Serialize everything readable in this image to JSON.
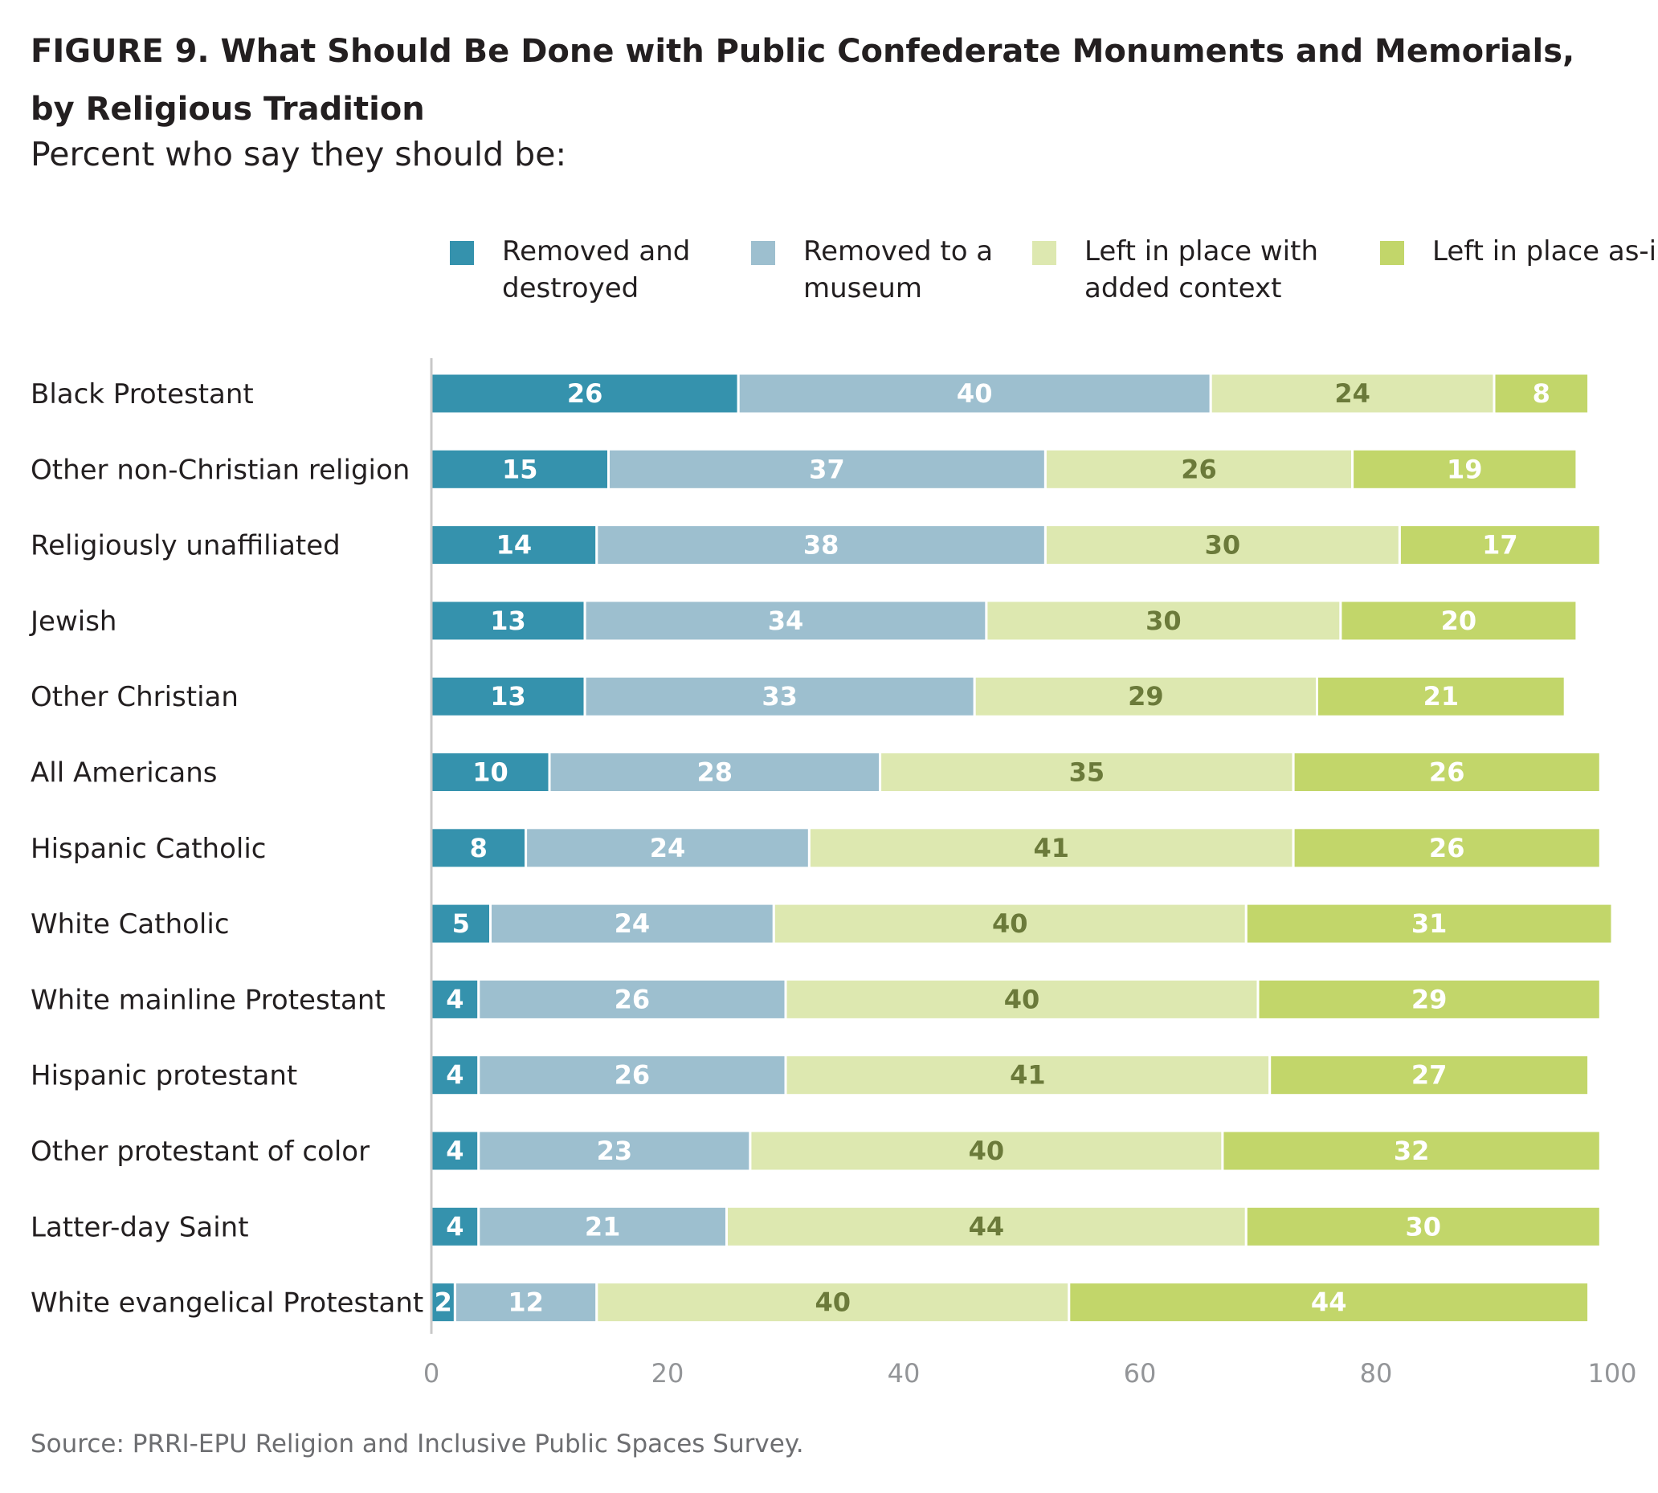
{
  "title": "FIGURE 9.  What Should Be Done with Public Confederate Monuments and Memorials, by Religious Tradition",
  "subtitle": "Percent who say they should be:",
  "source": "Source: PRRI-EPU Religion and Inclusive Public Spaces Survey.",
  "legend": [
    {
      "label": "Removed and destroyed",
      "color": "#3592ad"
    },
    {
      "label": "Removed to a museum",
      "color": "#9dbfcf"
    },
    {
      "label": "Left in place with added context",
      "color": "#dde8b0"
    },
    {
      "label": "Left in place as-is",
      "color": "#c2d66a"
    }
  ],
  "label_colors": {
    "dark_segments": "#ffffff",
    "light_segment": "#6b7a3a"
  },
  "chart_data": {
    "type": "bar",
    "orientation": "horizontal",
    "stacked": true,
    "categories": [
      "Black Protestant",
      "Other non-Christian religion",
      "Religiously unaffiliated",
      "Jewish",
      "Other Christian",
      "All Americans",
      "Hispanic Catholic",
      "White Catholic",
      "White mainline Protestant",
      "Hispanic protestant",
      "Other protestant of color",
      "Latter-day Saint",
      "White evangelical Protestant"
    ],
    "series": [
      {
        "name": "Removed and destroyed",
        "color": "#3592ad",
        "values": [
          26,
          15,
          14,
          13,
          13,
          10,
          8,
          5,
          4,
          4,
          4,
          4,
          2
        ]
      },
      {
        "name": "Removed to a museum",
        "color": "#9dbfcf",
        "values": [
          40,
          37,
          38,
          34,
          33,
          28,
          24,
          24,
          26,
          26,
          23,
          21,
          12
        ]
      },
      {
        "name": "Left in place with added context",
        "color": "#dde8b0",
        "values": [
          24,
          26,
          30,
          30,
          29,
          35,
          41,
          40,
          40,
          41,
          40,
          44,
          40
        ]
      },
      {
        "name": "Left in place as-is",
        "color": "#c2d66a",
        "values": [
          8,
          19,
          17,
          20,
          21,
          26,
          26,
          31,
          29,
          27,
          32,
          30,
          44
        ]
      }
    ],
    "xlim": [
      0,
      100
    ],
    "xticks": [
      0,
      20,
      40,
      60,
      80,
      100
    ],
    "grid": false,
    "legend_position": "top"
  }
}
